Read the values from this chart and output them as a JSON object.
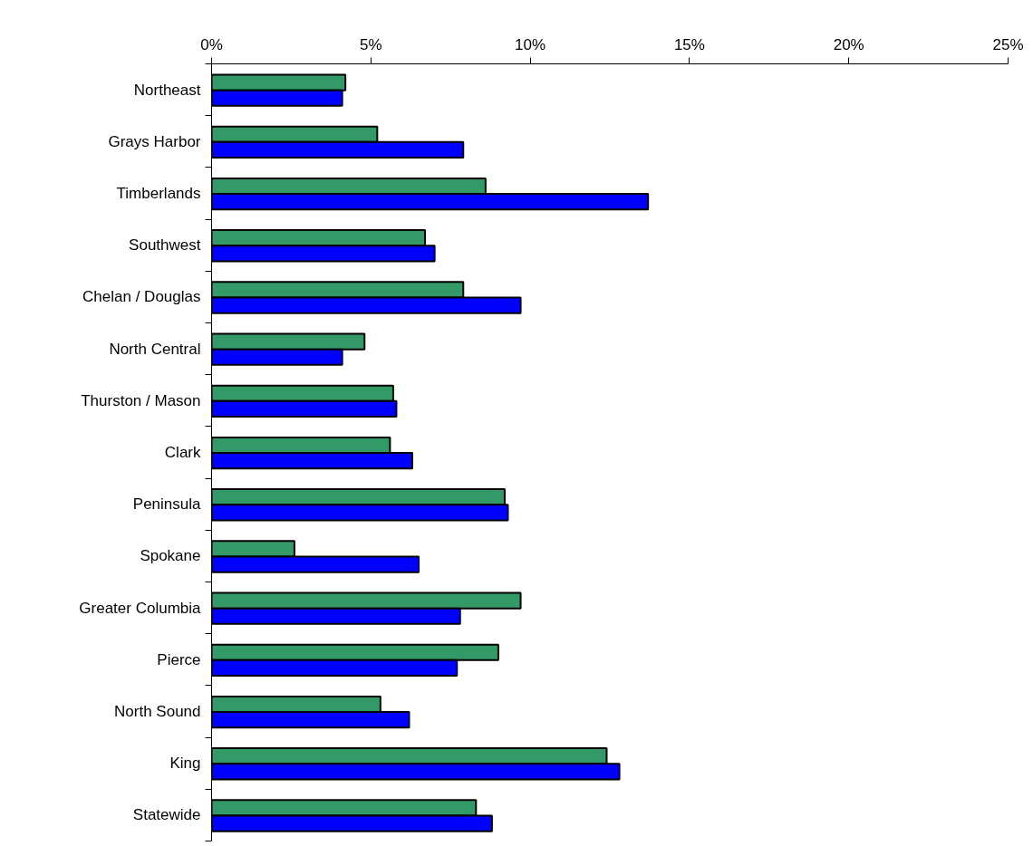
{
  "chart_data": {
    "type": "bar",
    "orientation": "horizontal",
    "categories": [
      "Northeast",
      "Grays Harbor",
      "Timberlands",
      "Southwest",
      "Chelan / Douglas",
      "North Central",
      "Thurston / Mason",
      "Clark",
      "Peninsula",
      "Spokane",
      "Greater Columbia",
      "Pierce",
      "North Sound",
      "King",
      "Statewide"
    ],
    "series": [
      {
        "color": "#339966",
        "values": [
          4.2,
          5.2,
          8.6,
          6.7,
          7.9,
          4.8,
          5.7,
          5.6,
          9.2,
          2.6,
          9.7,
          9.0,
          5.3,
          12.4,
          8.3
        ]
      },
      {
        "color": "#0000ff",
        "values": [
          4.1,
          7.9,
          13.7,
          7.0,
          9.7,
          4.1,
          5.8,
          6.3,
          9.3,
          6.5,
          7.8,
          7.7,
          6.2,
          12.8,
          8.8
        ]
      }
    ],
    "xlim": [
      0,
      25
    ],
    "xticks": [
      {
        "value": 0,
        "label": "0%"
      },
      {
        "value": 5,
        "label": "5%"
      },
      {
        "value": 10,
        "label": "10%"
      },
      {
        "value": 15,
        "label": "15%"
      },
      {
        "value": 20,
        "label": "20%"
      },
      {
        "value": 25,
        "label": "25%"
      }
    ],
    "grid": false
  }
}
